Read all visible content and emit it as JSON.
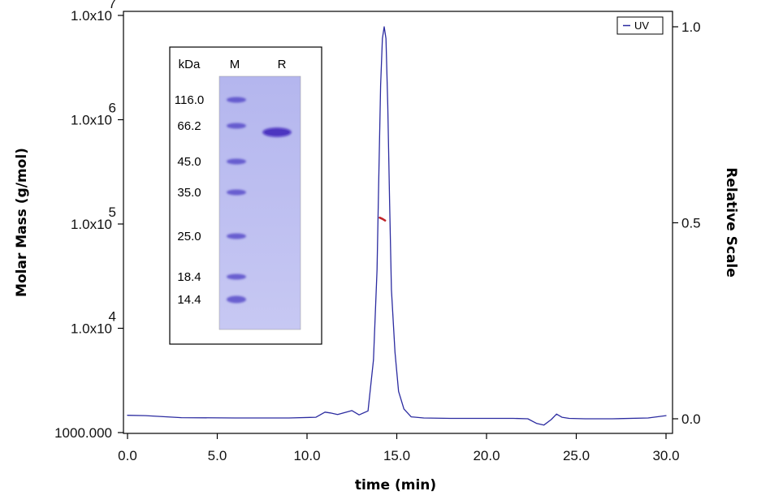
{
  "chart_data": {
    "type": "line",
    "title": "",
    "xlabel": "time (min)",
    "ylabel": "Molar Mass (g/mol)",
    "y2label": "Relative Scale",
    "xlim": [
      0,
      30
    ],
    "x_ticks": [
      "0.0",
      "5.0",
      "10.0",
      "15.0",
      "20.0",
      "25.0",
      "30.0"
    ],
    "y_log_range": [
      1000,
      10000000
    ],
    "y_ticks": [
      {
        "mantissa": "1000.000",
        "exp": ""
      },
      {
        "mantissa": "1.0x10",
        "exp": "4"
      },
      {
        "mantissa": "1.0x10",
        "exp": "5"
      },
      {
        "mantissa": "1.0x10",
        "exp": "6"
      },
      {
        "mantissa": "1.0x10",
        "exp": "7"
      }
    ],
    "y2lim": [
      0,
      1.0
    ],
    "y2_ticks": [
      "0.0",
      "0.5",
      "1.0"
    ],
    "legend": {
      "position": "top-right",
      "entries": [
        "UV"
      ]
    },
    "series": [
      {
        "name": "UV",
        "color": "#2b2ba0",
        "axis": "right",
        "x": [
          0.0,
          1.0,
          3.0,
          6.0,
          9.0,
          10.5,
          11.0,
          11.3,
          11.7,
          12.2,
          12.5,
          12.9,
          13.4,
          13.7,
          13.9,
          14.0,
          14.1,
          14.2,
          14.3,
          14.4,
          14.5,
          14.6,
          14.7,
          14.9,
          15.1,
          15.4,
          15.8,
          16.5,
          18.0,
          20.0,
          21.5,
          22.3,
          22.8,
          23.2,
          23.6,
          23.9,
          24.2,
          24.6,
          25.5,
          27.0,
          29.0,
          30.0
        ],
        "y": [
          0.009,
          0.008,
          0.003,
          0.002,
          0.002,
          0.004,
          0.017,
          0.015,
          0.011,
          0.017,
          0.021,
          0.01,
          0.02,
          0.15,
          0.38,
          0.62,
          0.85,
          0.97,
          1.0,
          0.97,
          0.8,
          0.55,
          0.33,
          0.17,
          0.07,
          0.025,
          0.005,
          0.002,
          0.001,
          0.001,
          0.001,
          0.0,
          -0.012,
          -0.016,
          -0.002,
          0.012,
          0.004,
          0.001,
          0.0,
          0.0,
          0.002,
          0.008
        ]
      },
      {
        "name": "Molar Mass",
        "color": "#c0242a",
        "axis": "left",
        "x": [
          14.05,
          14.2,
          14.35
        ],
        "y": [
          115000,
          112000,
          108000
        ]
      }
    ],
    "inset_gel": {
      "header_labels": [
        "kDa",
        "M",
        "R"
      ],
      "marker_kda": [
        "116.0",
        "66.2",
        "45.0",
        "35.0",
        "25.0",
        "18.4",
        "14.4"
      ]
    }
  }
}
